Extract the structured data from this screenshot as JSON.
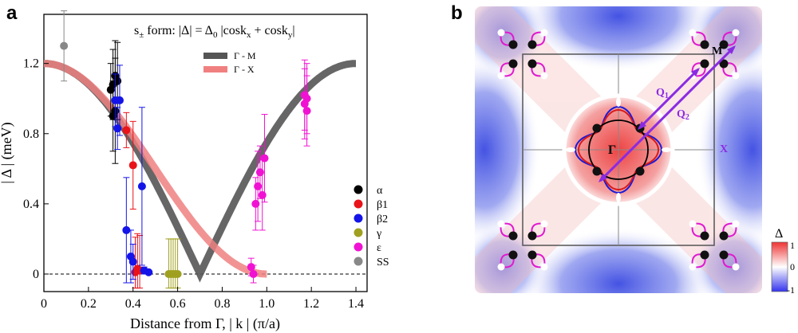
{
  "panel_a": {
    "letter": "a",
    "chart_data": {
      "type": "scatter",
      "title_base": "s",
      "title_sub": "±",
      "title_mid": " form: |Δ| = Δ",
      "title_sub0": "0",
      "title_rest": " |cosk",
      "title_subx": "x",
      "title_plus": " + cosk",
      "title_suby": "y",
      "title_end": "|",
      "xlabel": "Distance from Γ, | k | (π/a)",
      "ylabel": "| Δ | (meV)",
      "xlim": [
        0,
        1.45
      ],
      "ylim": [
        -0.1,
        1.48
      ],
      "xticks": [
        "0",
        "0.2",
        "0.4",
        "0.6",
        "0.8",
        "1.0",
        "1.2",
        "1.4"
      ],
      "yticks": [
        "0",
        "0.4",
        "0.8",
        "1.2"
      ],
      "fit_lines": [
        {
          "name": "Γ - M",
          "color": "#555555",
          "x_range": [
            0,
            1.4
          ],
          "formula": "delta0*|cos(pi*k/sqrt2)|*... (Γ-M)"
        },
        {
          "name": "Γ - X",
          "color": "#f08080",
          "x_range": [
            0,
            1.0
          ]
        }
      ],
      "delta0": 1.2,
      "series": [
        {
          "name": "α",
          "color": "#000000",
          "points": [
            {
              "x": 0.3,
              "y": 1.05,
              "err": 0.15
            },
            {
              "x": 0.31,
              "y": 1.08,
              "err": 0.2
            },
            {
              "x": 0.32,
              "y": 1.13,
              "err": 0.2
            },
            {
              "x": 0.31,
              "y": 0.9,
              "err": 0.2
            },
            {
              "x": 0.32,
              "y": 0.93,
              "err": 0.3
            },
            {
              "x": 0.33,
              "y": 1.1,
              "err": 0.22
            }
          ]
        },
        {
          "name": "β1",
          "color": "#e8141a",
          "points": [
            {
              "x": 0.37,
              "y": 0.82,
              "err": 0.1
            },
            {
              "x": 0.4,
              "y": 0.62,
              "err": 0.25
            },
            {
              "x": 0.41,
              "y": 0.01,
              "err": 0.2
            },
            {
              "x": 0.42,
              "y": 0.03,
              "err": 0.2
            },
            {
              "x": 0.43,
              "y": 0.02,
              "err": 0.2
            }
          ]
        },
        {
          "name": "β2",
          "color": "#1414e8",
          "points": [
            {
              "x": 0.32,
              "y": 0.99,
              "err": 0.15
            },
            {
              "x": 0.33,
              "y": 0.83,
              "err": 0.12
            },
            {
              "x": 0.34,
              "y": 0.99,
              "err": 0.2
            },
            {
              "x": 0.37,
              "y": 0.25,
              "err": 0.3
            },
            {
              "x": 0.39,
              "y": 0.1,
              "err": 0.15
            },
            {
              "x": 0.4,
              "y": 0.07,
              "err": 0.1
            },
            {
              "x": 0.44,
              "y": 0.5,
              "err": 0.45
            },
            {
              "x": 0.45,
              "y": 0.02,
              "err": 0.02
            },
            {
              "x": 0.47,
              "y": 0.01,
              "err": 0.01
            }
          ]
        },
        {
          "name": "γ",
          "color": "#a0a020",
          "points": [
            {
              "x": 0.56,
              "y": 0.0,
              "err": 0.2
            },
            {
              "x": 0.57,
              "y": 0.0,
              "err": 0.2
            },
            {
              "x": 0.58,
              "y": 0.0,
              "err": 0.2
            },
            {
              "x": 0.59,
              "y": 0.0,
              "err": 0.2
            },
            {
              "x": 0.6,
              "y": 0.0,
              "err": 0.2
            }
          ]
        },
        {
          "name": "ε",
          "color": "#f012d2",
          "points": [
            {
              "x": 0.93,
              "y": 0.04,
              "err": 0.05
            },
            {
              "x": 0.94,
              "y": 0.0,
              "err": 0.05
            },
            {
              "x": 0.95,
              "y": 0.4,
              "err": 0.15
            },
            {
              "x": 0.96,
              "y": 0.5,
              "err": 0.2
            },
            {
              "x": 0.97,
              "y": 0.58,
              "err": 0.15
            },
            {
              "x": 0.98,
              "y": 0.45,
              "err": 0.2
            },
            {
              "x": 0.99,
              "y": 0.66,
              "err": 0.25
            },
            {
              "x": 1.17,
              "y": 1.02,
              "err": 0.2
            },
            {
              "x": 1.17,
              "y": 0.97,
              "err": 0.2
            },
            {
              "x": 1.18,
              "y": 0.93,
              "err": 0.2
            },
            {
              "x": 1.18,
              "y": 1.0,
              "err": 0.2
            }
          ]
        },
        {
          "name": "SS",
          "color": "#888888",
          "points": [
            {
              "x": 0.09,
              "y": 1.3,
              "err": 0.2
            }
          ]
        }
      ]
    }
  },
  "panel_b": {
    "letter": "b",
    "labels": {
      "m": "M",
      "x": "X",
      "gamma": "Γ",
      "q1": "Q",
      "q1_sub": "1",
      "q2": "Q",
      "q2_sub": "2"
    },
    "colorbar": {
      "title": "Δ",
      "ticks": [
        "1",
        "0",
        "-1"
      ],
      "top_color": "#ee3333",
      "mid_color": "#ffffff",
      "bottom_color": "#3333ee"
    }
  }
}
